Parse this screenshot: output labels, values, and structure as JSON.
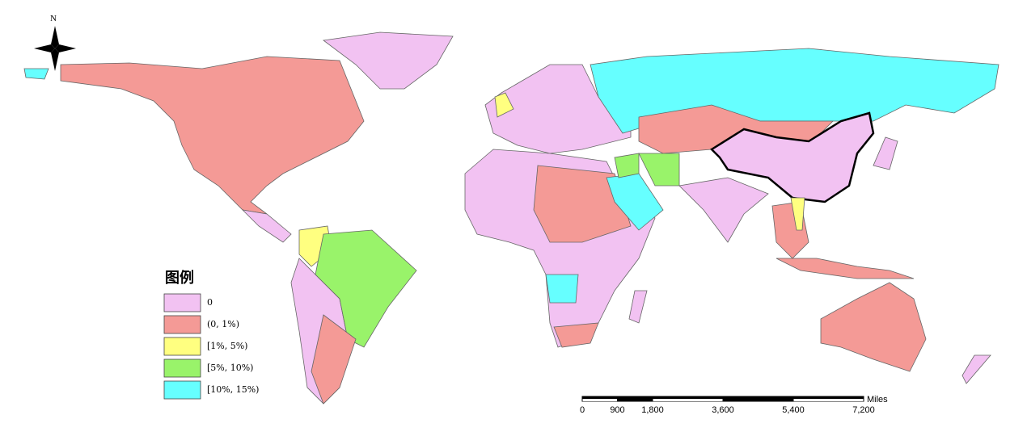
{
  "north_arrow": {
    "label": "N"
  },
  "legend": {
    "title": "图例",
    "items": [
      {
        "label": "0",
        "color": "#f2c2f2"
      },
      {
        "label": "(0, 1%)",
        "color": "#f49a96"
      },
      {
        "label": "[1%, 5%)",
        "color": "#ffff80"
      },
      {
        "label": "[5%, 10%)",
        "color": "#99f36a"
      },
      {
        "label": "[10%, 15%)",
        "color": "#66ffff"
      }
    ]
  },
  "scale_bar": {
    "unit": "Miles",
    "ticks": [
      0,
      900,
      {
        "value": 1800,
        "label": "1,800"
      },
      {
        "value": 3600,
        "label": "3,600"
      },
      {
        "value": 5400,
        "label": "5,400"
      },
      {
        "value": 7200,
        "label": "7,200"
      }
    ]
  }
}
